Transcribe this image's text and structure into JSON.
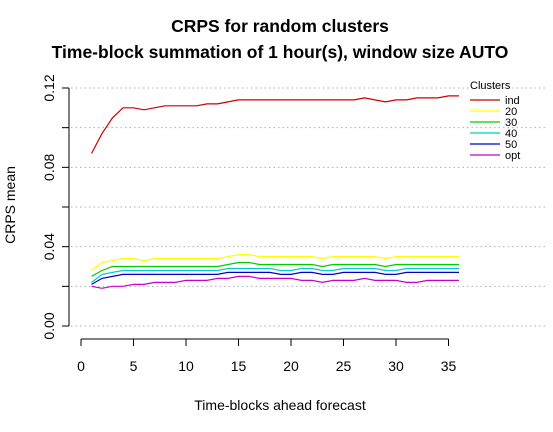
{
  "chart_data": {
    "type": "line",
    "title": "CRPS for random clusters",
    "subtitle": "Time-block summation of 1 hour(s), window size AUTO",
    "xlabel": "Time-blocks ahead forecast",
    "ylabel": "CRPS mean",
    "xlim": [
      0,
      36
    ],
    "ylim": [
      0.0,
      0.12
    ],
    "x_ticks": [
      "0",
      "5",
      "10",
      "15",
      "20",
      "25",
      "30",
      "35"
    ],
    "y_ticks": [
      "0.00",
      "0.04",
      "0.08",
      "0.12"
    ],
    "grid": "horizontal dotted",
    "legend": {
      "title": "Clusters",
      "position": "top-right"
    },
    "x": [
      1,
      2,
      3,
      4,
      5,
      6,
      7,
      8,
      9,
      10,
      11,
      12,
      13,
      14,
      15,
      16,
      17,
      18,
      19,
      20,
      21,
      22,
      23,
      24,
      25,
      26,
      27,
      28,
      29,
      30,
      31,
      32,
      33,
      34,
      35,
      36
    ],
    "series": [
      {
        "name": "ind",
        "color": "#cc0000",
        "values": [
          0.087,
          0.097,
          0.105,
          0.11,
          0.11,
          0.109,
          0.11,
          0.111,
          0.111,
          0.111,
          0.111,
          0.112,
          0.112,
          0.113,
          0.114,
          0.114,
          0.114,
          0.114,
          0.114,
          0.114,
          0.114,
          0.114,
          0.114,
          0.114,
          0.114,
          0.114,
          0.115,
          0.114,
          0.113,
          0.114,
          0.114,
          0.115,
          0.115,
          0.115,
          0.116,
          0.116
        ]
      },
      {
        "name": "20",
        "color": "#ffff00",
        "values": [
          0.028,
          0.032,
          0.033,
          0.034,
          0.034,
          0.033,
          0.034,
          0.034,
          0.034,
          0.034,
          0.034,
          0.034,
          0.034,
          0.035,
          0.036,
          0.036,
          0.035,
          0.035,
          0.035,
          0.035,
          0.035,
          0.035,
          0.034,
          0.035,
          0.035,
          0.035,
          0.035,
          0.035,
          0.034,
          0.035,
          0.035,
          0.035,
          0.035,
          0.035,
          0.035,
          0.035
        ]
      },
      {
        "name": "30",
        "color": "#00cc00",
        "values": [
          0.025,
          0.028,
          0.03,
          0.03,
          0.03,
          0.03,
          0.03,
          0.03,
          0.03,
          0.03,
          0.03,
          0.03,
          0.03,
          0.031,
          0.032,
          0.032,
          0.031,
          0.031,
          0.031,
          0.031,
          0.031,
          0.031,
          0.03,
          0.031,
          0.031,
          0.031,
          0.031,
          0.031,
          0.03,
          0.031,
          0.031,
          0.031,
          0.031,
          0.031,
          0.031,
          0.031
        ]
      },
      {
        "name": "40",
        "color": "#00cccc",
        "values": [
          0.022,
          0.026,
          0.027,
          0.028,
          0.028,
          0.028,
          0.028,
          0.028,
          0.028,
          0.028,
          0.028,
          0.028,
          0.028,
          0.029,
          0.029,
          0.029,
          0.029,
          0.029,
          0.028,
          0.028,
          0.029,
          0.029,
          0.028,
          0.028,
          0.029,
          0.029,
          0.029,
          0.029,
          0.028,
          0.028,
          0.029,
          0.029,
          0.029,
          0.029,
          0.029,
          0.029
        ]
      },
      {
        "name": "50",
        "color": "#0000cc",
        "values": [
          0.021,
          0.024,
          0.025,
          0.026,
          0.026,
          0.026,
          0.026,
          0.026,
          0.026,
          0.026,
          0.026,
          0.026,
          0.026,
          0.027,
          0.027,
          0.027,
          0.027,
          0.027,
          0.026,
          0.026,
          0.027,
          0.027,
          0.026,
          0.026,
          0.027,
          0.027,
          0.027,
          0.027,
          0.026,
          0.026,
          0.027,
          0.027,
          0.027,
          0.027,
          0.027,
          0.027
        ]
      },
      {
        "name": "opt",
        "color": "#cc00cc",
        "values": [
          0.02,
          0.019,
          0.02,
          0.02,
          0.021,
          0.021,
          0.022,
          0.022,
          0.022,
          0.023,
          0.023,
          0.023,
          0.024,
          0.024,
          0.025,
          0.025,
          0.024,
          0.024,
          0.024,
          0.024,
          0.023,
          0.023,
          0.022,
          0.023,
          0.023,
          0.023,
          0.024,
          0.023,
          0.023,
          0.023,
          0.022,
          0.022,
          0.023,
          0.023,
          0.023,
          0.023
        ]
      }
    ]
  }
}
